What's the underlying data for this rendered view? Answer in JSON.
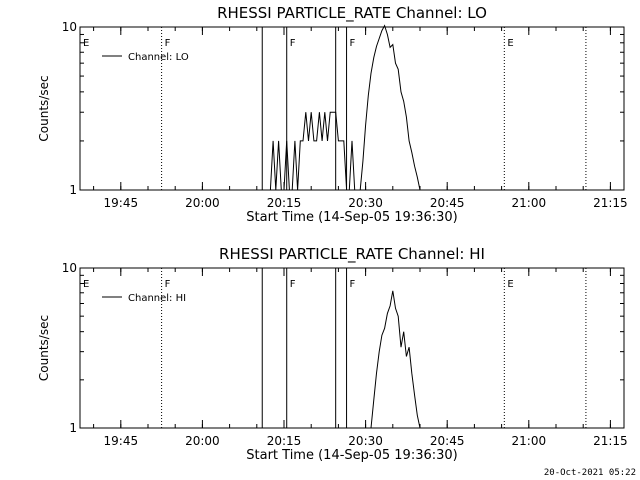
{
  "footer": {
    "timestamp": "20-Oct-2021 05:22"
  },
  "chart_data": [
    {
      "type": "line",
      "title": "RHESSI PARTICLE_RATE Channel: LO",
      "xlabel": "Start Time (14-Sep-05 19:36:30)",
      "ylabel": "Counts/sec",
      "xlim": [
        "19:37:30",
        "21:17:30"
      ],
      "ylim": [
        1,
        10
      ],
      "yscale": "log",
      "x_tick_labels": [
        "19:45",
        "20:00",
        "20:15",
        "20:30",
        "20:45",
        "21:00",
        "21:15"
      ],
      "y_tick_labels": [
        "1",
        "10"
      ],
      "legend": {
        "entries": [
          "Channel: LO"
        ],
        "placement": "top-left"
      },
      "flag_markers": [
        {
          "label": "E",
          "time": "19:37:30",
          "style": "none"
        },
        {
          "label": "F",
          "time": "19:52:30",
          "style": "dotted"
        },
        {
          "label": "",
          "time": "20:11:00",
          "style": "solid"
        },
        {
          "label": "F",
          "time": "20:15:30",
          "style": "solid"
        },
        {
          "label": "",
          "time": "20:24:30",
          "style": "solid"
        },
        {
          "label": "F",
          "time": "20:26:30",
          "style": "solid"
        },
        {
          "label": "E",
          "time": "20:55:30",
          "style": "dotted"
        },
        {
          "label": "",
          "time": "21:10:30",
          "style": "dotted"
        }
      ],
      "series": [
        {
          "name": "Channel: LO",
          "x": [
            "20:12:30",
            "20:13:00",
            "20:13:30",
            "20:14:00",
            "20:14:30",
            "20:15:00",
            "20:15:30",
            "20:16:00",
            "20:16:30",
            "20:17:00",
            "20:17:30",
            "20:18:00",
            "20:18:30",
            "20:19:00",
            "20:19:30",
            "20:20:00",
            "20:20:30",
            "20:21:00",
            "20:21:30",
            "20:22:00",
            "20:22:30",
            "20:23:00",
            "20:23:30",
            "20:24:00",
            "20:24:30",
            "20:25:00",
            "20:25:30",
            "20:26:00",
            "20:26:30",
            "20:27:00",
            "20:27:30",
            "20:28:00",
            "20:28:30",
            "20:29:00",
            "20:29:30",
            "20:30:00",
            "20:30:30",
            "20:31:00",
            "20:31:30",
            "20:32:00",
            "20:32:30",
            "20:33:00",
            "20:33:30",
            "20:34:00",
            "20:34:30",
            "20:35:00",
            "20:35:30",
            "20:36:00",
            "20:36:30",
            "20:37:00",
            "20:37:30",
            "20:38:00",
            "20:38:30",
            "20:39:00",
            "20:39:30",
            "20:40:00"
          ],
          "y": [
            1,
            2,
            1,
            2,
            1,
            1,
            2,
            1,
            1,
            2,
            1,
            2,
            2,
            3,
            2,
            3,
            2,
            2,
            3,
            2,
            3,
            2,
            3,
            3,
            3,
            2,
            2,
            2,
            1,
            1,
            2,
            1,
            1,
            1,
            1.5,
            2.5,
            3.8,
            5.2,
            6.5,
            7.6,
            8.5,
            9.5,
            10.2,
            9.0,
            7.5,
            7.8,
            6.0,
            5.5,
            4.0,
            3.5,
            2.8,
            2.0,
            1.7,
            1.4,
            1.2,
            1.0
          ]
        }
      ]
    },
    {
      "type": "line",
      "title": "RHESSI PARTICLE_RATE Channel: HI",
      "xlabel": "Start Time (14-Sep-05 19:36:30)",
      "ylabel": "Counts/sec",
      "xlim": [
        "19:37:30",
        "21:17:30"
      ],
      "ylim": [
        1,
        10
      ],
      "yscale": "log",
      "x_tick_labels": [
        "19:45",
        "20:00",
        "20:15",
        "20:30",
        "20:45",
        "21:00",
        "21:15"
      ],
      "y_tick_labels": [
        "1",
        "10"
      ],
      "legend": {
        "entries": [
          "Channel: HI"
        ],
        "placement": "top-left"
      },
      "flag_markers": [
        {
          "label": "E",
          "time": "19:37:30",
          "style": "none"
        },
        {
          "label": "F",
          "time": "19:52:30",
          "style": "dotted"
        },
        {
          "label": "",
          "time": "20:11:00",
          "style": "solid"
        },
        {
          "label": "F",
          "time": "20:15:30",
          "style": "solid"
        },
        {
          "label": "",
          "time": "20:24:30",
          "style": "solid"
        },
        {
          "label": "F",
          "time": "20:26:30",
          "style": "solid"
        },
        {
          "label": "E",
          "time": "20:55:30",
          "style": "dotted"
        },
        {
          "label": "",
          "time": "21:10:30",
          "style": "dotted"
        }
      ],
      "series": [
        {
          "name": "Channel: HI",
          "x": [
            "20:31:00",
            "20:31:30",
            "20:32:00",
            "20:32:30",
            "20:33:00",
            "20:33:30",
            "20:34:00",
            "20:34:30",
            "20:35:00",
            "20:35:30",
            "20:36:00",
            "20:36:30",
            "20:37:00",
            "20:37:30",
            "20:38:00",
            "20:38:30",
            "20:39:00",
            "20:39:30",
            "20:40:00"
          ],
          "y": [
            1.0,
            1.5,
            2.2,
            3.0,
            3.8,
            4.2,
            5.2,
            5.8,
            7.2,
            5.6,
            5.0,
            3.2,
            4.0,
            2.8,
            3.2,
            2.2,
            1.6,
            1.2,
            1.0
          ]
        }
      ]
    }
  ]
}
